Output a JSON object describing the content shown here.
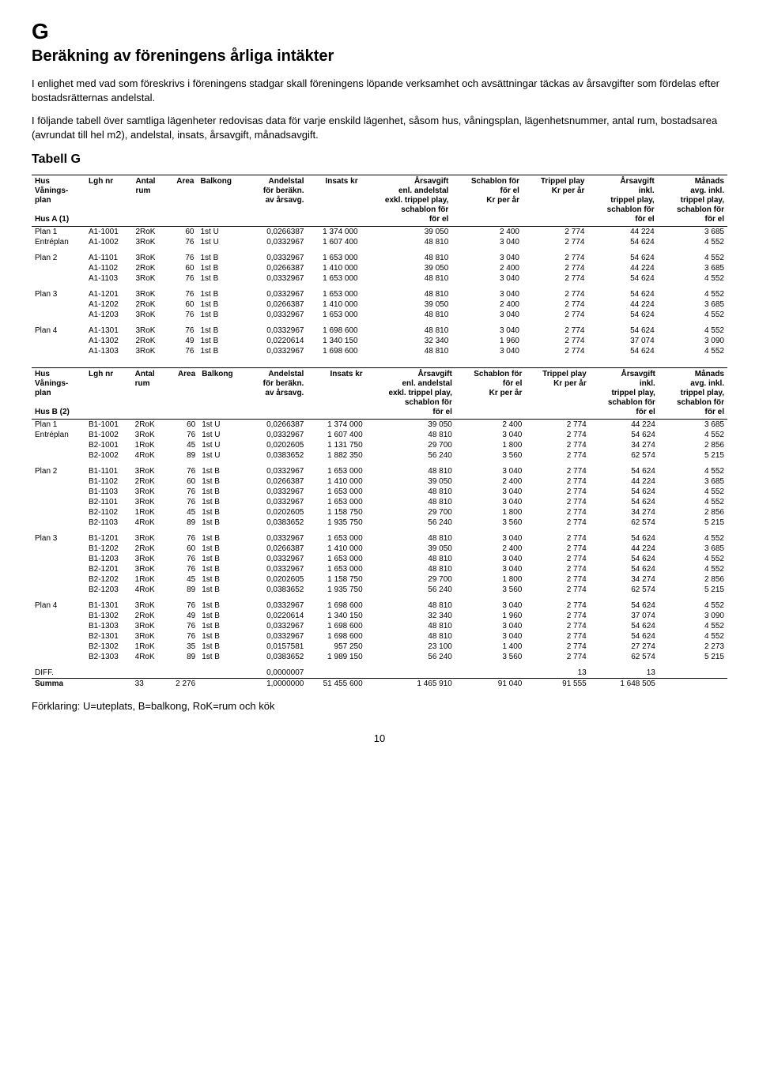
{
  "section_letter": "G",
  "main_title": "Beräkning av föreningens årliga intäkter",
  "para1": "I enlighet med vad som föreskrivs i föreningens stadgar skall föreningens löpande verksamhet och avsättningar täckas av årsavgifter som fördelas efter bostadsrätternas andelstal.",
  "para2": "I följande tabell över samtliga lägenheter redovisas data för varje enskild lägenhet, såsom hus, våningsplan, lägenhetsnummer, antal rum, bostadsarea (avrundat till hel m2), andelstal, insats, årsavgift, månadsavgift.",
  "table_title": "Tabell G",
  "headers": {
    "hus": "Hus\nVånings-\nplan",
    "lgh": "Lgh nr",
    "antal": "Antal\nrum",
    "area": "Area",
    "balkong": "Balkong",
    "andelstal": "Andelstal\nför beräkn.\nav årsavg.",
    "insats": "Insats kr",
    "arsavgift": "Årsavgift\nenl. andelstal\nexkl. trippel play,\nschablon för\nför el",
    "schablon": "Schablon för\nför el\nKr per år",
    "trippel": "Trippel play\nKr per år",
    "arsavgift_inkl": "Årsavgift\ninkl.\ntrippel play,\nschablon för\nför el",
    "manads": "Månads\navg. inkl.\ntrippel play,\nschablon för\nför el"
  },
  "house_a_label": "Hus A (1)",
  "house_b_label": "Hus B (2)",
  "tableA": {
    "groups": [
      {
        "rows": [
          [
            "Plan 1",
            "A1-1001",
            "2RoK",
            "60",
            "1st U",
            "0,0266387",
            "1 374 000",
            "39 050",
            "2 400",
            "2 774",
            "44 224",
            "3 685"
          ],
          [
            "Entréplan",
            "A1-1002",
            "3RoK",
            "76",
            "1st U",
            "0,0332967",
            "1 607 400",
            "48 810",
            "3 040",
            "2 774",
            "54 624",
            "4 552"
          ]
        ]
      },
      {
        "rows": [
          [
            "Plan 2",
            "A1-1101",
            "3RoK",
            "76",
            "1st B",
            "0,0332967",
            "1 653 000",
            "48 810",
            "3 040",
            "2 774",
            "54 624",
            "4 552"
          ],
          [
            "",
            "A1-1102",
            "2RoK",
            "60",
            "1st B",
            "0,0266387",
            "1 410 000",
            "39 050",
            "2 400",
            "2 774",
            "44 224",
            "3 685"
          ],
          [
            "",
            "A1-1103",
            "3RoK",
            "76",
            "1st B",
            "0,0332967",
            "1 653 000",
            "48 810",
            "3 040",
            "2 774",
            "54 624",
            "4 552"
          ]
        ]
      },
      {
        "rows": [
          [
            "Plan 3",
            "A1-1201",
            "3RoK",
            "76",
            "1st B",
            "0,0332967",
            "1 653 000",
            "48 810",
            "3 040",
            "2 774",
            "54 624",
            "4 552"
          ],
          [
            "",
            "A1-1202",
            "2RoK",
            "60",
            "1st B",
            "0,0266387",
            "1 410 000",
            "39 050",
            "2 400",
            "2 774",
            "44 224",
            "3 685"
          ],
          [
            "",
            "A1-1203",
            "3RoK",
            "76",
            "1st B",
            "0,0332967",
            "1 653 000",
            "48 810",
            "3 040",
            "2 774",
            "54 624",
            "4 552"
          ]
        ]
      },
      {
        "rows": [
          [
            "Plan 4",
            "A1-1301",
            "3RoK",
            "76",
            "1st B",
            "0,0332967",
            "1 698 600",
            "48 810",
            "3 040",
            "2 774",
            "54 624",
            "4 552"
          ],
          [
            "",
            "A1-1302",
            "2RoK",
            "49",
            "1st B",
            "0,0220614",
            "1 340 150",
            "32 340",
            "1 960",
            "2 774",
            "37 074",
            "3 090"
          ],
          [
            "",
            "A1-1303",
            "3RoK",
            "76",
            "1st B",
            "0,0332967",
            "1 698 600",
            "48 810",
            "3 040",
            "2 774",
            "54 624",
            "4 552"
          ]
        ]
      }
    ]
  },
  "tableB": {
    "groups": [
      {
        "rows": [
          [
            "Plan 1",
            "B1-1001",
            "2RoK",
            "60",
            "1st U",
            "0,0266387",
            "1 374 000",
            "39 050",
            "2 400",
            "2 774",
            "44 224",
            "3 685"
          ],
          [
            "Entréplan",
            "B1-1002",
            "3RoK",
            "76",
            "1st U",
            "0,0332967",
            "1 607 400",
            "48 810",
            "3 040",
            "2 774",
            "54 624",
            "4 552"
          ],
          [
            "",
            "B2-1001",
            "1RoK",
            "45",
            "1st U",
            "0,0202605",
            "1 131 750",
            "29 700",
            "1 800",
            "2 774",
            "34 274",
            "2 856"
          ],
          [
            "",
            "B2-1002",
            "4RoK",
            "89",
            "1st U",
            "0,0383652",
            "1 882 350",
            "56 240",
            "3 560",
            "2 774",
            "62 574",
            "5 215"
          ]
        ]
      },
      {
        "rows": [
          [
            "Plan 2",
            "B1-1101",
            "3RoK",
            "76",
            "1st B",
            "0,0332967",
            "1 653 000",
            "48 810",
            "3 040",
            "2 774",
            "54 624",
            "4 552"
          ],
          [
            "",
            "B1-1102",
            "2RoK",
            "60",
            "1st B",
            "0,0266387",
            "1 410 000",
            "39 050",
            "2 400",
            "2 774",
            "44 224",
            "3 685"
          ],
          [
            "",
            "B1-1103",
            "3RoK",
            "76",
            "1st B",
            "0,0332967",
            "1 653 000",
            "48 810",
            "3 040",
            "2 774",
            "54 624",
            "4 552"
          ],
          [
            "",
            "B2-1101",
            "3RoK",
            "76",
            "1st B",
            "0,0332967",
            "1 653 000",
            "48 810",
            "3 040",
            "2 774",
            "54 624",
            "4 552"
          ],
          [
            "",
            "B2-1102",
            "1RoK",
            "45",
            "1st B",
            "0,0202605",
            "1 158 750",
            "29 700",
            "1 800",
            "2 774",
            "34 274",
            "2 856"
          ],
          [
            "",
            "B2-1103",
            "4RoK",
            "89",
            "1st B",
            "0,0383652",
            "1 935 750",
            "56 240",
            "3 560",
            "2 774",
            "62 574",
            "5 215"
          ]
        ]
      },
      {
        "rows": [
          [
            "Plan 3",
            "B1-1201",
            "3RoK",
            "76",
            "1st B",
            "0,0332967",
            "1 653 000",
            "48 810",
            "3 040",
            "2 774",
            "54 624",
            "4 552"
          ],
          [
            "",
            "B1-1202",
            "2RoK",
            "60",
            "1st B",
            "0,0266387",
            "1 410 000",
            "39 050",
            "2 400",
            "2 774",
            "44 224",
            "3 685"
          ],
          [
            "",
            "B1-1203",
            "3RoK",
            "76",
            "1st B",
            "0,0332967",
            "1 653 000",
            "48 810",
            "3 040",
            "2 774",
            "54 624",
            "4 552"
          ],
          [
            "",
            "B2-1201",
            "3RoK",
            "76",
            "1st B",
            "0,0332967",
            "1 653 000",
            "48 810",
            "3 040",
            "2 774",
            "54 624",
            "4 552"
          ],
          [
            "",
            "B2-1202",
            "1RoK",
            "45",
            "1st B",
            "0,0202605",
            "1 158 750",
            "29 700",
            "1 800",
            "2 774",
            "34 274",
            "2 856"
          ],
          [
            "",
            "B2-1203",
            "4RoK",
            "89",
            "1st B",
            "0,0383652",
            "1 935 750",
            "56 240",
            "3 560",
            "2 774",
            "62 574",
            "5 215"
          ]
        ]
      },
      {
        "rows": [
          [
            "Plan 4",
            "B1-1301",
            "3RoK",
            "76",
            "1st B",
            "0,0332967",
            "1 698 600",
            "48 810",
            "3 040",
            "2 774",
            "54 624",
            "4 552"
          ],
          [
            "",
            "B1-1302",
            "2RoK",
            "49",
            "1st B",
            "0,0220614",
            "1 340 150",
            "32 340",
            "1 960",
            "2 774",
            "37 074",
            "3 090"
          ],
          [
            "",
            "B1-1303",
            "3RoK",
            "76",
            "1st B",
            "0,0332967",
            "1 698 600",
            "48 810",
            "3 040",
            "2 774",
            "54 624",
            "4 552"
          ],
          [
            "",
            "B2-1301",
            "3RoK",
            "76",
            "1st B",
            "0,0332967",
            "1 698 600",
            "48 810",
            "3 040",
            "2 774",
            "54 624",
            "4 552"
          ],
          [
            "",
            "B2-1302",
            "1RoK",
            "35",
            "1st B",
            "0,0157581",
            "957 250",
            "23 100",
            "1 400",
            "2 774",
            "27 274",
            "2 273"
          ],
          [
            "",
            "B2-1303",
            "4RoK",
            "89",
            "1st B",
            "0,0383652",
            "1 989 150",
            "56 240",
            "3 560",
            "2 774",
            "62 574",
            "5 215"
          ]
        ]
      }
    ],
    "diff_row": [
      "DIFF.",
      "",
      "",
      "",
      "",
      "0,0000007",
      "",
      "",
      "",
      "13",
      "13",
      ""
    ],
    "sum_row": [
      "Summa",
      "",
      "33",
      "2 276",
      "",
      "1,0000000",
      "51 455 600",
      "1 465 910",
      "91 040",
      "91 555",
      "1 648 505",
      ""
    ]
  },
  "explain": "Förklaring: U=uteplats, B=balkong, RoK=rum och kök",
  "page_num": "10"
}
